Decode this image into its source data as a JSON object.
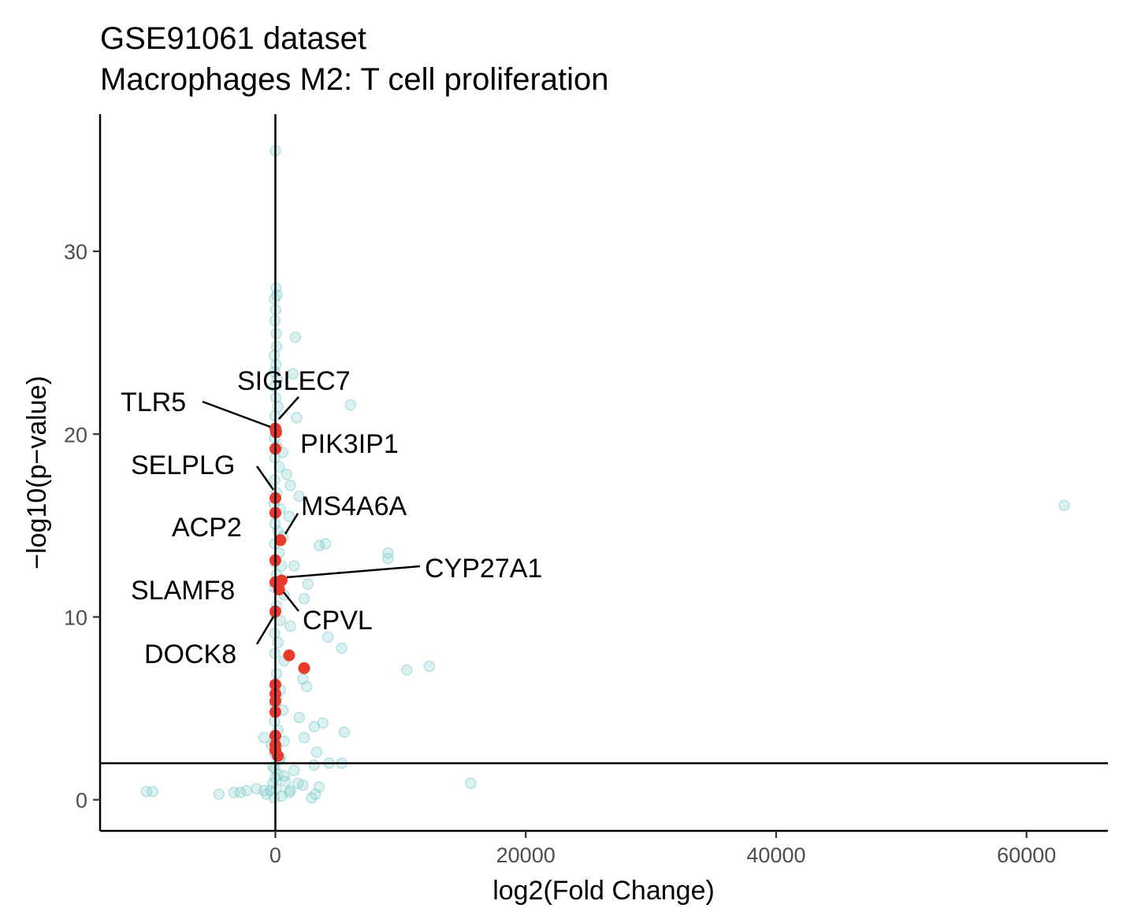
{
  "chart_data": {
    "type": "scatter",
    "title": "GSE91061 dataset",
    "subtitle": "Macrophages M2: T cell proliferation",
    "xlabel": "log2(Fold Change)",
    "ylabel": "−log10(p−value)",
    "xlim": [
      -14000,
      66500
    ],
    "ylim": [
      -1.7,
      37.5
    ],
    "x_ticks": [
      0,
      20000,
      40000,
      60000
    ],
    "x_tick_labels": [
      "0",
      "20000",
      "40000",
      "60000"
    ],
    "y_ticks": [
      0,
      10,
      20,
      30
    ],
    "y_tick_labels": [
      "0",
      "10",
      "20",
      "30"
    ],
    "reference_lines": {
      "vertical_x": 0,
      "horizontal_y": 2
    },
    "grid": false,
    "colors": {
      "background": "#d9d9d9",
      "highlight": "#e8392b",
      "axis": "#000000"
    },
    "series": [
      {
        "role": "background",
        "points": [
          [
            0,
            35.5
          ],
          [
            50,
            28.0
          ],
          [
            -60,
            27.4
          ],
          [
            30,
            26.8
          ],
          [
            120,
            27.6
          ],
          [
            -30,
            26.2
          ],
          [
            80,
            25.5
          ],
          [
            1600,
            25.3
          ],
          [
            100,
            24.8
          ],
          [
            -80,
            24.3
          ],
          [
            60,
            23.8
          ],
          [
            -40,
            23.4
          ],
          [
            150,
            23.0
          ],
          [
            1400,
            23.3
          ],
          [
            -100,
            22.6
          ],
          [
            40,
            22.0
          ],
          [
            200,
            21.5
          ],
          [
            -30,
            21.0
          ],
          [
            1700,
            20.9
          ],
          [
            100,
            20.2
          ],
          [
            -60,
            19.8
          ],
          [
            150,
            19.3
          ],
          [
            600,
            19.0
          ],
          [
            -30,
            18.7
          ],
          [
            300,
            18.2
          ],
          [
            900,
            17.8
          ],
          [
            -50,
            17.5
          ],
          [
            1200,
            17.2
          ],
          [
            100,
            16.8
          ],
          [
            1900,
            16.6
          ],
          [
            -80,
            16.2
          ],
          [
            400,
            15.9
          ],
          [
            1100,
            15.5
          ],
          [
            -30,
            15.1
          ],
          [
            200,
            14.7
          ],
          [
            600,
            14.4
          ],
          [
            -60,
            14.0
          ],
          [
            3500,
            13.9
          ],
          [
            4000,
            14.0
          ],
          [
            300,
            13.5
          ],
          [
            9000,
            13.5
          ],
          [
            9000,
            13.2
          ],
          [
            -40,
            13.0
          ],
          [
            500,
            12.8
          ],
          [
            1500,
            12.8
          ],
          [
            100,
            12.3
          ],
          [
            2600,
            11.8
          ],
          [
            -50,
            11.6
          ],
          [
            700,
            11.2
          ],
          [
            2300,
            11.0
          ],
          [
            100,
            10.6
          ],
          [
            -30,
            10.2
          ],
          [
            400,
            9.8
          ],
          [
            1200,
            9.5
          ],
          [
            -60,
            9.1
          ],
          [
            4200,
            8.9
          ],
          [
            200,
            8.6
          ],
          [
            5300,
            8.3
          ],
          [
            -40,
            8.0
          ],
          [
            700,
            7.6
          ],
          [
            12300,
            7.3
          ],
          [
            10500,
            7.1
          ],
          [
            100,
            6.9
          ],
          [
            2200,
            6.6
          ],
          [
            -50,
            6.3
          ],
          [
            400,
            6.0
          ],
          [
            2500,
            6.2
          ],
          [
            100,
            5.6
          ],
          [
            -30,
            5.2
          ],
          [
            600,
            4.9
          ],
          [
            1900,
            4.5
          ],
          [
            -60,
            4.3
          ],
          [
            3100,
            4.0
          ],
          [
            3800,
            4.2
          ],
          [
            200,
            3.8
          ],
          [
            5500,
            3.7
          ],
          [
            -40,
            3.5
          ],
          [
            700,
            3.2
          ],
          [
            2300,
            3.4
          ],
          [
            -900,
            3.4
          ],
          [
            100,
            2.9
          ],
          [
            3300,
            2.6
          ],
          [
            -30,
            2.5
          ],
          [
            400,
            2.3
          ],
          [
            5300,
            2.0
          ],
          [
            4300,
            2.0
          ],
          [
            3100,
            1.9
          ],
          [
            -50,
            1.7
          ],
          [
            1500,
            1.6
          ],
          [
            200,
            1.4
          ],
          [
            -30,
            1.2
          ],
          [
            800,
            1.0
          ],
          [
            2200,
            0.8
          ],
          [
            3500,
            0.7
          ],
          [
            -200,
            0.9
          ],
          [
            15600,
            0.9
          ],
          [
            100,
            0.6
          ],
          [
            -400,
            0.5
          ],
          [
            -900,
            0.5
          ],
          [
            -1500,
            0.6
          ],
          [
            -2300,
            0.5
          ],
          [
            -2800,
            0.4
          ],
          [
            -3300,
            0.4
          ],
          [
            -4500,
            0.3
          ],
          [
            -10300,
            0.45
          ],
          [
            -9800,
            0.45
          ],
          [
            1200,
            0.5
          ],
          [
            3200,
            0.3
          ],
          [
            2900,
            0.1
          ],
          [
            500,
            0.2
          ],
          [
            -100,
            0.1
          ],
          [
            63000,
            16.1
          ],
          [
            6000,
            21.6
          ],
          [
            -700,
            0.3
          ],
          [
            300,
            2.2
          ],
          [
            -200,
            1.8
          ],
          [
            700,
            1.3
          ],
          [
            1100,
            0.4
          ],
          [
            1800,
            0.9
          ],
          [
            -300,
            3.0
          ]
        ]
      },
      {
        "role": "highlight",
        "points": [
          [
            0,
            20.3
          ],
          [
            60,
            20.1
          ],
          [
            0,
            19.2
          ],
          [
            0,
            16.5
          ],
          [
            0,
            15.7
          ],
          [
            400,
            14.2
          ],
          [
            0,
            13.1
          ],
          [
            0,
            11.9
          ],
          [
            500,
            12.0
          ],
          [
            300,
            11.5
          ],
          [
            0,
            10.3
          ],
          [
            1100,
            7.9
          ],
          [
            2300,
            7.2
          ],
          [
            0,
            6.3
          ],
          [
            0,
            5.8
          ],
          [
            0,
            5.4
          ],
          [
            0,
            4.8
          ],
          [
            0,
            3.5
          ],
          [
            0,
            3.0
          ],
          [
            0,
            2.7
          ],
          [
            200,
            2.4
          ]
        ]
      }
    ],
    "annotations": [
      {
        "label": "SIGLEC7"
      },
      {
        "label": "TLR5"
      },
      {
        "label": "PIK3IP1"
      },
      {
        "label": "SELPLG"
      },
      {
        "label": "MS4A6A"
      },
      {
        "label": "ACP2"
      },
      {
        "label": "CYP27A1"
      },
      {
        "label": "SLAMF8"
      },
      {
        "label": "CPVL"
      },
      {
        "label": "DOCK8"
      }
    ]
  }
}
